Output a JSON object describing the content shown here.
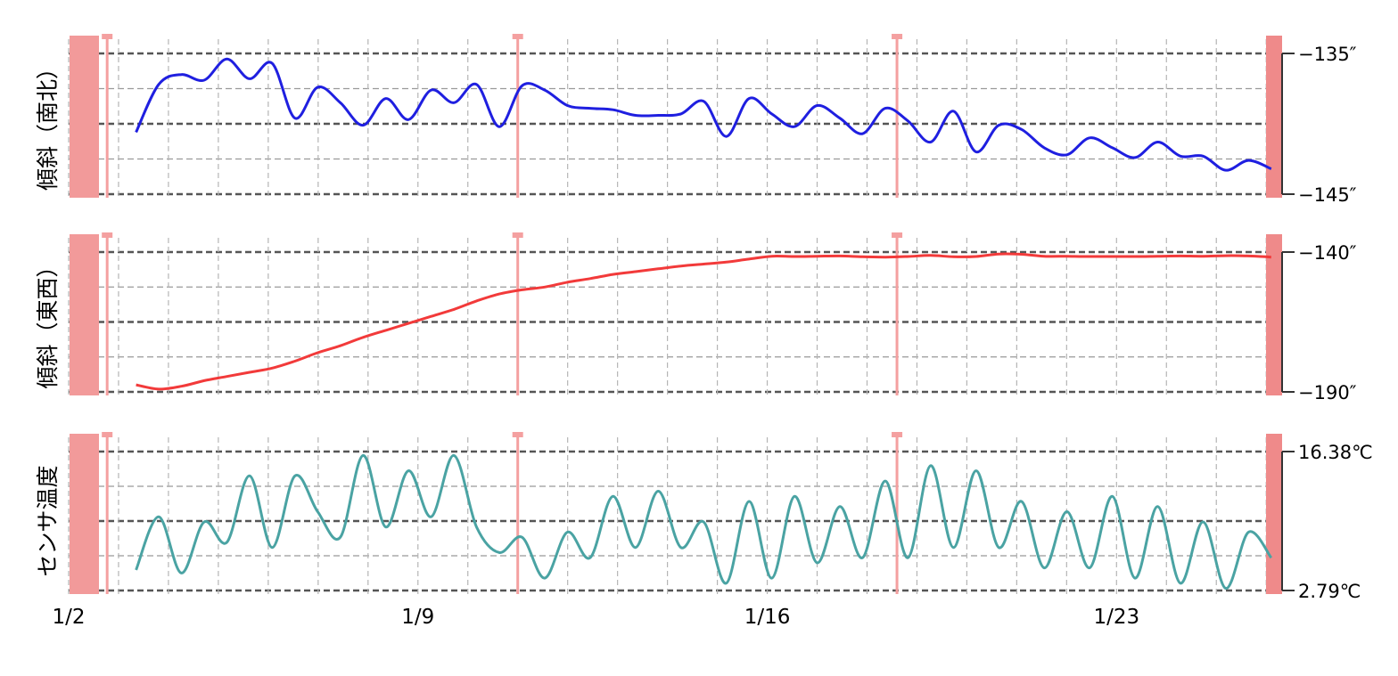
{
  "chart_data": [
    {
      "type": "line",
      "ylabel": "傾斜（南北）",
      "ylim": [
        -145,
        -135
      ],
      "y_tick_labels": [
        "−135″",
        "−145″"
      ],
      "color": "#1f1fe0",
      "series": [
        {
          "values": [
            -140.6,
            -137.2,
            -136.5,
            -136.9,
            -135.4,
            -136.8,
            -135.7,
            -139.6,
            -137.4,
            -138.5,
            -140.1,
            -138.2,
            -139.7,
            -137.6,
            -138.5,
            -137.2,
            -140.2,
            -137.3,
            -137.6,
            -138.7,
            -138.9,
            -139.0,
            -139.4,
            -139.4,
            -139.3,
            -138.4,
            -140.9,
            -138.2,
            -139.3,
            -140.2,
            -138.7,
            -139.6,
            -140.7,
            -138.9,
            -139.8,
            -141.3,
            -139.1,
            -142.0,
            -140.1,
            -140.4,
            -141.7,
            -142.2,
            -141.0,
            -141.7,
            -142.4,
            -141.3,
            -142.3,
            -142.3,
            -143.3,
            -142.6,
            -143.2
          ]
        }
      ]
    },
    {
      "type": "line",
      "ylabel": "傾斜（東西）",
      "ylim": [
        -190,
        -140
      ],
      "y_tick_labels": [
        "−140″",
        "−190″"
      ],
      "color": "#f23a3a",
      "series": [
        {
          "values": [
            -187.5,
            -189.0,
            -188.0,
            -186.0,
            -184.5,
            -183.0,
            -181.5,
            -179.0,
            -176.0,
            -173.5,
            -170.5,
            -168.0,
            -165.5,
            -163.0,
            -160.5,
            -157.5,
            -155.0,
            -153.5,
            -152.5,
            -150.8,
            -149.5,
            -148.0,
            -147.0,
            -146.0,
            -145.0,
            -144.3,
            -143.6,
            -142.5,
            -141.5,
            -141.6,
            -141.5,
            -141.4,
            -141.7,
            -141.8,
            -141.6,
            -141.2,
            -141.7,
            -141.6,
            -140.7,
            -140.8,
            -141.5,
            -141.5,
            -141.6,
            -141.6,
            -141.6,
            -141.5,
            -141.4,
            -141.5,
            -141.3,
            -141.4,
            -141.8
          ]
        }
      ]
    },
    {
      "type": "line",
      "ylabel": "センサ温度",
      "ylim": [
        2.79,
        16.38
      ],
      "y_tick_labels": [
        "16.38℃",
        "2.79℃"
      ],
      "color": "#4aa3a3",
      "series": [
        {
          "values": [
            4.8,
            10.0,
            4.5,
            9.5,
            7.5,
            14.0,
            7.0,
            14.0,
            10.5,
            8.0,
            16.0,
            9.0,
            14.5,
            10.0,
            16.0,
            9.0,
            6.5,
            8.0,
            4.0,
            8.5,
            6.0,
            12.0,
            7.0,
            12.5,
            7.0,
            9.5,
            3.5,
            11.5,
            4.0,
            12.0,
            5.5,
            11.0,
            6.0,
            13.5,
            6.0,
            15.0,
            7.0,
            14.5,
            7.0,
            11.5,
            5.0,
            10.5,
            5.0,
            12.0,
            4.0,
            11.0,
            3.5,
            9.5,
            3.0,
            8.5,
            6.0
          ]
        }
      ]
    }
  ],
  "x_axis": {
    "tick_labels": [
      "1/2",
      "1/9",
      "1/16",
      "1/23"
    ],
    "range_days": [
      0,
      24.3
    ]
  },
  "gap_markers_days": [
    0.2,
    9.0,
    16.6
  ]
}
